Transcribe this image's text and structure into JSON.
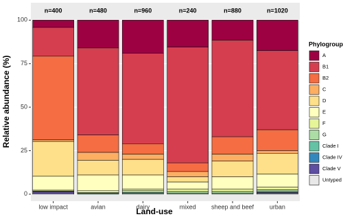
{
  "chart_data": {
    "type": "stacked_bar",
    "x_label": "Land-use",
    "y_label": "Relative abundance (%)",
    "legend_title": "Phylogroup",
    "legend_position": "right",
    "categories": [
      "low impact",
      "avian",
      "dairy",
      "mixed",
      "sheep and beef",
      "urban"
    ],
    "annotations": [
      "n=400",
      "n=480",
      "n=960",
      "n=240",
      "n=880",
      "n=1020"
    ],
    "ylim": [
      -4,
      110
    ],
    "yticks": [
      0,
      25,
      50,
      75,
      100
    ],
    "series": [
      {
        "name": "A",
        "color": "#9e0142",
        "values": [
          4.2,
          16,
          19,
          15.5,
          11.5,
          17.5
        ]
      },
      {
        "name": "B1",
        "color": "#d53e4f",
        "values": [
          16.5,
          50,
          52,
          66.5,
          55.5,
          45.5
        ]
      },
      {
        "name": "B2",
        "color": "#f46d43",
        "values": [
          48,
          10,
          6,
          5,
          10,
          12
        ]
      },
      {
        "name": "C",
        "color": "#fdae61",
        "values": [
          1,
          4.5,
          3,
          3,
          4,
          1.5
        ]
      },
      {
        "name": "D",
        "color": "#fee08b",
        "values": [
          20,
          8.5,
          9,
          3,
          9,
          12
        ]
      },
      {
        "name": "E",
        "color": "#ffffbf",
        "values": [
          8,
          9,
          8,
          4,
          7,
          7.5
        ]
      },
      {
        "name": "F",
        "color": "#e6f598",
        "values": [
          0.5,
          1,
          1,
          1.5,
          1.5,
          1.5
        ]
      },
      {
        "name": "G",
        "color": "#abdda4",
        "values": [
          0.3,
          0.5,
          1,
          1,
          1,
          1
        ]
      },
      {
        "name": "Clade I",
        "color": "#66c2a5",
        "values": [
          0,
          0.5,
          0.5,
          0,
          0,
          0.5
        ]
      },
      {
        "name": "Clade IV",
        "color": "#3288bd",
        "values": [
          0,
          0,
          0,
          0,
          0,
          0
        ]
      },
      {
        "name": "Clade V",
        "color": "#5e4fa2",
        "values": [
          1,
          0,
          0,
          0,
          0,
          0.5
        ]
      },
      {
        "name": "Untyped",
        "color": "#e8e8e8",
        "values": [
          0.5,
          0,
          0.5,
          0.5,
          0.5,
          0.5
        ]
      }
    ]
  }
}
